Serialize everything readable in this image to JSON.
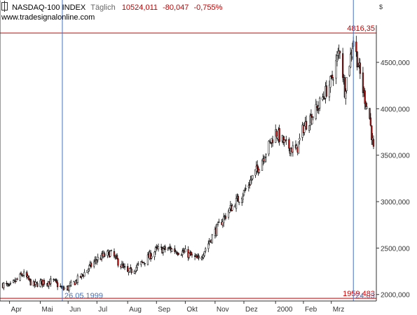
{
  "header": {
    "symbol": "NASDAQ-100 INDEX",
    "period": "Täglich",
    "last": "10524,011",
    "change": "-80,047",
    "change_pct": "-0,755%",
    "website": "www.tradesignalonline.com",
    "currency": "$"
  },
  "colors": {
    "up": "#ffffff",
    "down": "#b21e1e",
    "outline": "#000000",
    "hline": "#cc0000",
    "vline": "#4472c4",
    "axis": "#333333"
  },
  "chart_data": {
    "type": "candlestick",
    "title": "NASDAQ-100 INDEX",
    "ylim": [
      1930,
      4900
    ],
    "yticks": [
      2000,
      2500,
      3000,
      3500,
      4000,
      4500
    ],
    "ytick_labels": [
      "2000,000",
      "2500,000",
      "3000,000",
      "3500,000",
      "4000,000",
      "4500,000"
    ],
    "xaxis_labels": [
      {
        "label": "Apr",
        "date": "1999-04-01"
      },
      {
        "label": "Mai",
        "date": "1999-05-03"
      },
      {
        "label": "Jun",
        "date": "1999-06-01"
      },
      {
        "label": "Jul",
        "date": "1999-07-01"
      },
      {
        "label": "Aug",
        "date": "1999-08-02"
      },
      {
        "label": "Sep",
        "date": "1999-09-01"
      },
      {
        "label": "Okt",
        "date": "1999-10-01"
      },
      {
        "label": "Nov",
        "date": "1999-11-01"
      },
      {
        "label": "Dez",
        "date": "1999-12-01"
      },
      {
        "label": "2000",
        "date": "2000-01-03"
      },
      {
        "label": "Feb",
        "date": "2000-02-01"
      },
      {
        "label": "Mrz",
        "date": "2000-03-01"
      }
    ],
    "hlines": [
      {
        "value": 4816.35,
        "label": "4816,35"
      },
      {
        "value": 1959.483,
        "label": "1959,483"
      }
    ],
    "vlines": [
      {
        "date": "1999-05-26",
        "label": "26.05.1999"
      },
      {
        "date": "2000-03-24",
        "label": "24.03"
      }
    ],
    "series_close": [
      {
        "date": "1999-03-25",
        "close": 2110
      },
      {
        "date": "1999-04-01",
        "close": 2080
      },
      {
        "date": "1999-04-15",
        "close": 2220
      },
      {
        "date": "1999-04-26",
        "close": 2100
      },
      {
        "date": "1999-05-03",
        "close": 2130
      },
      {
        "date": "1999-05-17",
        "close": 2140
      },
      {
        "date": "1999-05-26",
        "close": 2060
      },
      {
        "date": "1999-06-01",
        "close": 2070
      },
      {
        "date": "1999-06-15",
        "close": 2200
      },
      {
        "date": "1999-07-01",
        "close": 2380
      },
      {
        "date": "1999-07-15",
        "close": 2450
      },
      {
        "date": "1999-08-02",
        "close": 2230
      },
      {
        "date": "1999-08-16",
        "close": 2330
      },
      {
        "date": "1999-09-01",
        "close": 2480
      },
      {
        "date": "1999-09-15",
        "close": 2490
      },
      {
        "date": "1999-10-01",
        "close": 2450
      },
      {
        "date": "1999-10-15",
        "close": 2370
      },
      {
        "date": "1999-11-01",
        "close": 2680
      },
      {
        "date": "1999-11-15",
        "close": 2900
      },
      {
        "date": "1999-12-01",
        "close": 3100
      },
      {
        "date": "1999-12-15",
        "close": 3350
      },
      {
        "date": "2000-01-03",
        "close": 3750
      },
      {
        "date": "2000-01-14",
        "close": 3600
      },
      {
        "date": "2000-01-25",
        "close": 3550
      },
      {
        "date": "2000-02-01",
        "close": 3800
      },
      {
        "date": "2000-02-15",
        "close": 4000
      },
      {
        "date": "2000-03-01",
        "close": 4300
      },
      {
        "date": "2000-03-10",
        "close": 4650
      },
      {
        "date": "2000-03-15",
        "close": 4200
      },
      {
        "date": "2000-03-24",
        "close": 4750
      },
      {
        "date": "2000-04-03",
        "close": 4200
      },
      {
        "date": "2000-04-10",
        "close": 3900
      },
      {
        "date": "2000-04-14",
        "close": 3550
      }
    ]
  }
}
